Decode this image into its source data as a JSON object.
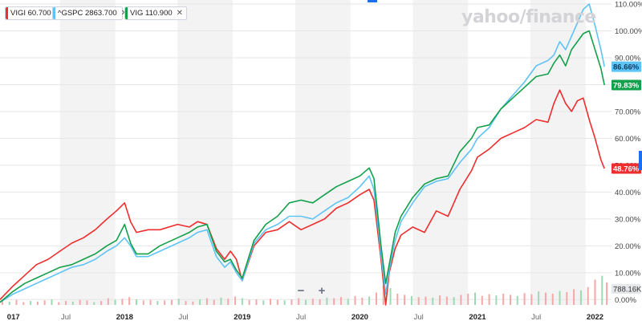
{
  "brand": {
    "text": "yahoo/finance"
  },
  "legend": [
    {
      "id": "vigi",
      "label": "VIGI 60.700",
      "color": "#ee2e2e"
    },
    {
      "id": "gspc",
      "label": "^GSPC 2863.700",
      "color": "#5ec3f5"
    },
    {
      "id": "vig",
      "label": "VIG 110.900",
      "color": "#12a04a"
    }
  ],
  "zoom": {
    "minus": "−",
    "plus": "+"
  },
  "volume_label": "788.16K",
  "chart_data": {
    "type": "line",
    "x_ticks": [
      "017",
      "Jul",
      "2018",
      "Jul",
      "2019",
      "Jul",
      "2020",
      "Jul",
      "2021",
      "Jul",
      "2022"
    ],
    "x_tick_dates": [
      2017.0,
      2017.5,
      2018.0,
      2018.5,
      2019.0,
      2019.5,
      2020.0,
      2020.5,
      2021.0,
      2021.5,
      2022.0
    ],
    "xlim": [
      2016.94,
      2022.14
    ],
    "ylim": [
      -0.02,
      1.115
    ],
    "y_ticks": [
      0.0,
      0.1,
      0.2,
      0.3,
      0.4,
      0.5,
      0.6,
      0.7,
      0.8,
      0.9,
      1.0,
      1.1
    ],
    "y_tick_labels": [
      "0.00%",
      "10.00%",
      "20.00%",
      "30.00%",
      "40.00%",
      "50.00%",
      "60.00%",
      "70.00%",
      "80.00%",
      "90.00%",
      "100.00%",
      "110.00%"
    ],
    "shaded_bands": [
      [
        2017.45,
        2017.92
      ],
      [
        2018.45,
        2018.92
      ],
      [
        2019.45,
        2019.92
      ],
      [
        2020.45,
        2020.92
      ],
      [
        2021.45,
        2021.92
      ]
    ],
    "series": [
      {
        "name": "VIGI",
        "color": "#ee2e2e",
        "end_label": "48.76%",
        "x": [
          2016.94,
          2017.05,
          2017.15,
          2017.25,
          2017.35,
          2017.45,
          2017.55,
          2017.65,
          2017.75,
          2017.85,
          2017.93,
          2018.0,
          2018.05,
          2018.1,
          2018.2,
          2018.3,
          2018.45,
          2018.55,
          2018.62,
          2018.7,
          2018.78,
          2018.85,
          2018.9,
          2018.95,
          2019.0,
          2019.1,
          2019.2,
          2019.3,
          2019.4,
          2019.5,
          2019.6,
          2019.7,
          2019.8,
          2019.9,
          2020.0,
          2020.08,
          2020.12,
          2020.18,
          2020.22,
          2020.25,
          2020.3,
          2020.35,
          2020.45,
          2020.55,
          2020.65,
          2020.75,
          2020.85,
          2020.95,
          2021.0,
          2021.1,
          2021.2,
          2021.3,
          2021.4,
          2021.5,
          2021.6,
          2021.65,
          2021.7,
          2021.75,
          2021.8,
          2021.85,
          2021.9,
          2021.95,
          2022.0,
          2022.05,
          2022.08
        ],
        "y": [
          0.0,
          0.05,
          0.09,
          0.13,
          0.15,
          0.18,
          0.21,
          0.23,
          0.26,
          0.3,
          0.33,
          0.36,
          0.29,
          0.25,
          0.26,
          0.26,
          0.28,
          0.27,
          0.29,
          0.28,
          0.19,
          0.15,
          0.18,
          0.15,
          0.07,
          0.2,
          0.25,
          0.26,
          0.29,
          0.26,
          0.28,
          0.3,
          0.34,
          0.36,
          0.39,
          0.41,
          0.37,
          0.15,
          -0.02,
          0.1,
          0.19,
          0.24,
          0.27,
          0.25,
          0.33,
          0.31,
          0.41,
          0.48,
          0.53,
          0.56,
          0.6,
          0.62,
          0.64,
          0.67,
          0.66,
          0.73,
          0.78,
          0.73,
          0.7,
          0.74,
          0.75,
          0.67,
          0.6,
          0.52,
          0.4876
        ]
      },
      {
        "name": "^GSPC",
        "color": "#5ec3f5",
        "end_label": "86.66%",
        "x": [
          2016.94,
          2017.05,
          2017.15,
          2017.25,
          2017.35,
          2017.45,
          2017.55,
          2017.65,
          2017.75,
          2017.85,
          2017.93,
          2018.0,
          2018.05,
          2018.1,
          2018.2,
          2018.3,
          2018.45,
          2018.55,
          2018.62,
          2018.7,
          2018.78,
          2018.85,
          2018.9,
          2018.95,
          2019.0,
          2019.1,
          2019.2,
          2019.3,
          2019.4,
          2019.5,
          2019.6,
          2019.7,
          2019.8,
          2019.9,
          2020.0,
          2020.08,
          2020.12,
          2020.18,
          2020.22,
          2020.25,
          2020.3,
          2020.35,
          2020.45,
          2020.55,
          2020.65,
          2020.75,
          2020.85,
          2020.95,
          2021.0,
          2021.1,
          2021.2,
          2021.3,
          2021.4,
          2021.5,
          2021.6,
          2021.65,
          2021.7,
          2021.75,
          2021.8,
          2021.85,
          2021.9,
          2021.95,
          2022.0,
          2022.05,
          2022.08
        ],
        "y": [
          -0.01,
          0.02,
          0.04,
          0.06,
          0.08,
          0.1,
          0.12,
          0.13,
          0.15,
          0.18,
          0.2,
          0.23,
          0.2,
          0.16,
          0.16,
          0.18,
          0.21,
          0.23,
          0.25,
          0.26,
          0.16,
          0.12,
          0.14,
          0.1,
          0.07,
          0.21,
          0.26,
          0.28,
          0.31,
          0.31,
          0.3,
          0.33,
          0.36,
          0.38,
          0.42,
          0.46,
          0.41,
          0.17,
          0.02,
          0.11,
          0.22,
          0.29,
          0.36,
          0.42,
          0.44,
          0.45,
          0.51,
          0.56,
          0.6,
          0.64,
          0.71,
          0.76,
          0.81,
          0.87,
          0.89,
          0.91,
          0.96,
          0.93,
          0.98,
          1.03,
          1.08,
          1.1,
          1.02,
          0.93,
          0.8666
        ]
      },
      {
        "name": "VIG",
        "color": "#12a04a",
        "end_label": "79.83%",
        "x": [
          2016.94,
          2017.05,
          2017.15,
          2017.25,
          2017.35,
          2017.45,
          2017.55,
          2017.65,
          2017.75,
          2017.85,
          2017.93,
          2018.0,
          2018.05,
          2018.1,
          2018.2,
          2018.3,
          2018.45,
          2018.55,
          2018.62,
          2018.7,
          2018.78,
          2018.85,
          2018.9,
          2018.95,
          2019.0,
          2019.1,
          2019.2,
          2019.3,
          2019.4,
          2019.5,
          2019.6,
          2019.7,
          2019.8,
          2019.9,
          2020.0,
          2020.08,
          2020.12,
          2020.18,
          2020.22,
          2020.25,
          2020.3,
          2020.35,
          2020.45,
          2020.55,
          2020.65,
          2020.75,
          2020.85,
          2020.95,
          2021.0,
          2021.1,
          2021.2,
          2021.3,
          2021.4,
          2021.5,
          2021.6,
          2021.65,
          2021.7,
          2021.75,
          2021.8,
          2021.85,
          2021.9,
          2021.95,
          2022.0,
          2022.05,
          2022.08
        ],
        "y": [
          -0.01,
          0.03,
          0.06,
          0.08,
          0.1,
          0.12,
          0.13,
          0.15,
          0.17,
          0.2,
          0.22,
          0.28,
          0.21,
          0.17,
          0.17,
          0.2,
          0.23,
          0.25,
          0.27,
          0.28,
          0.18,
          0.14,
          0.15,
          0.11,
          0.08,
          0.22,
          0.28,
          0.31,
          0.36,
          0.37,
          0.36,
          0.39,
          0.42,
          0.44,
          0.46,
          0.49,
          0.45,
          0.2,
          0.06,
          0.13,
          0.25,
          0.31,
          0.38,
          0.43,
          0.45,
          0.46,
          0.55,
          0.6,
          0.64,
          0.65,
          0.71,
          0.75,
          0.79,
          0.83,
          0.84,
          0.88,
          0.91,
          0.87,
          0.93,
          0.96,
          0.99,
          1.0,
          0.93,
          0.86,
          0.7983
        ]
      }
    ],
    "volume": {
      "x": [
        2016.96,
        2017.02,
        2017.08,
        2017.14,
        2017.2,
        2017.26,
        2017.32,
        2017.38,
        2017.44,
        2017.5,
        2017.56,
        2017.62,
        2017.68,
        2017.74,
        2017.8,
        2017.86,
        2017.92,
        2017.98,
        2018.04,
        2018.1,
        2018.16,
        2018.22,
        2018.28,
        2018.34,
        2018.4,
        2018.46,
        2018.52,
        2018.58,
        2018.64,
        2018.7,
        2018.76,
        2018.82,
        2018.88,
        2018.94,
        2019.0,
        2019.06,
        2019.12,
        2019.18,
        2019.24,
        2019.3,
        2019.36,
        2019.42,
        2019.48,
        2019.54,
        2019.6,
        2019.66,
        2019.72,
        2019.78,
        2019.84,
        2019.9,
        2019.96,
        2020.02,
        2020.08,
        2020.14,
        2020.2,
        2020.26,
        2020.32,
        2020.38,
        2020.44,
        2020.5,
        2020.56,
        2020.62,
        2020.68,
        2020.74,
        2020.8,
        2020.86,
        2020.92,
        2020.98,
        2021.04,
        2021.1,
        2021.16,
        2021.22,
        2021.28,
        2021.34,
        2021.4,
        2021.46,
        2021.52,
        2021.58,
        2021.64,
        2021.7,
        2021.76,
        2021.82,
        2021.88,
        2021.94,
        2022.0,
        2022.06,
        2022.1
      ],
      "v": [
        0.08,
        0.06,
        0.09,
        0.05,
        0.07,
        0.06,
        0.08,
        0.1,
        0.05,
        0.07,
        0.06,
        0.09,
        0.08,
        0.05,
        0.07,
        0.12,
        0.09,
        0.11,
        0.14,
        0.1,
        0.08,
        0.09,
        0.07,
        0.08,
        0.09,
        0.11,
        0.07,
        0.06,
        0.1,
        0.12,
        0.09,
        0.13,
        0.11,
        0.15,
        0.12,
        0.09,
        0.1,
        0.08,
        0.11,
        0.09,
        0.08,
        0.1,
        0.12,
        0.09,
        0.11,
        0.1,
        0.13,
        0.12,
        0.14,
        0.11,
        0.16,
        0.13,
        0.15,
        0.22,
        0.35,
        0.3,
        0.2,
        0.18,
        0.16,
        0.14,
        0.15,
        0.13,
        0.17,
        0.15,
        0.14,
        0.18,
        0.2,
        0.22,
        0.16,
        0.19,
        0.17,
        0.2,
        0.18,
        0.16,
        0.21,
        0.19,
        0.24,
        0.22,
        0.2,
        0.25,
        0.23,
        0.28,
        0.26,
        0.32,
        0.45,
        0.52,
        0.4
      ]
    }
  }
}
